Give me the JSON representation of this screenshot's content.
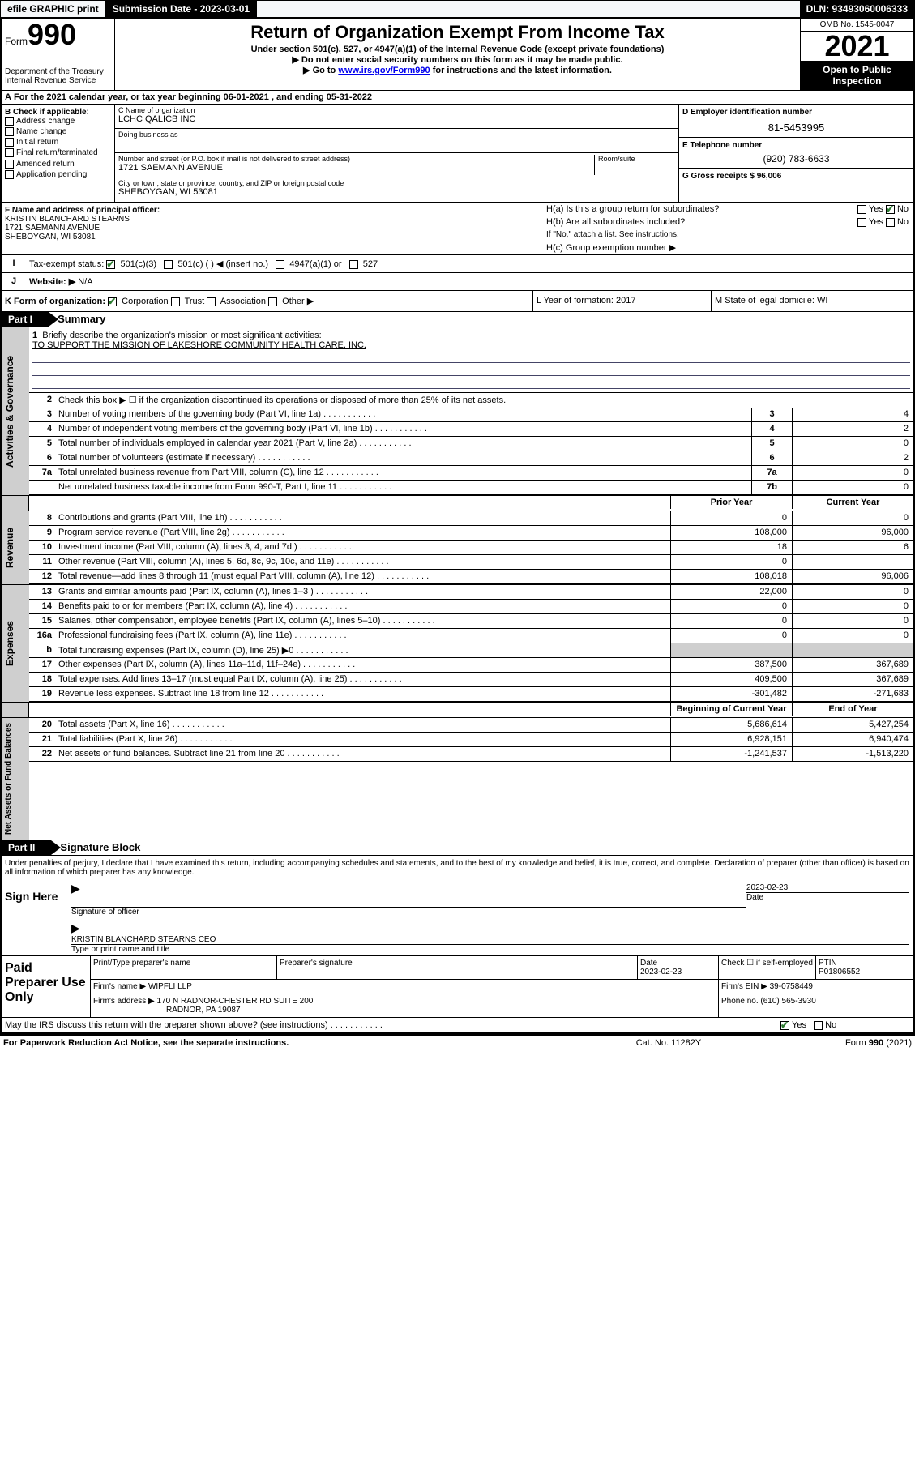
{
  "topbar": {
    "efile": "efile GRAPHIC print",
    "subdate_label": "Submission Date - 2023-03-01",
    "dln": "DLN: 93493060006333"
  },
  "header": {
    "formword": "Form",
    "formnum": "990",
    "dept": "Department of the Treasury",
    "irs": "Internal Revenue Service",
    "title": "Return of Organization Exempt From Income Tax",
    "sub1": "Under section 501(c), 527, or 4947(a)(1) of the Internal Revenue Code (except private foundations)",
    "sub2": "Do not enter social security numbers on this form as it may be made public.",
    "sub3_pre": "Go to ",
    "sub3_link": "www.irs.gov/Form990",
    "sub3_post": " for instructions and the latest information.",
    "omb": "OMB No. 1545-0047",
    "year": "2021",
    "inspect": "Open to Public Inspection"
  },
  "line_a": "For the 2021 calendar year, or tax year beginning 06-01-2021   , and ending 05-31-2022",
  "col_b_label": "B Check if applicable:",
  "col_b_items": [
    "Address change",
    "Name change",
    "Initial return",
    "Final return/terminated",
    "Amended return",
    "Application pending"
  ],
  "col_c": {
    "name_label": "C Name of organization",
    "name": "LCHC QALICB INC",
    "dba_label": "Doing business as",
    "addr_label": "Number and street (or P.O. box if mail is not delivered to street address)",
    "room_label": "Room/suite",
    "addr": "1721 SAEMANN AVENUE",
    "city_label": "City or town, state or province, country, and ZIP or foreign postal code",
    "city": "SHEBOYGAN, WI  53081"
  },
  "col_d": {
    "ein_label": "D Employer identification number",
    "ein": "81-5453995",
    "tel_label": "E Telephone number",
    "tel": "(920) 783-6633",
    "gross_label": "G Gross receipts $ 96,006"
  },
  "col_f": {
    "label": "F  Name and address of principal officer:",
    "name": "KRISTIN BLANCHARD STEARNS",
    "addr1": "1721 SAEMANN AVENUE",
    "addr2": "SHEBOYGAN, WI  53081"
  },
  "col_h": {
    "ha": "H(a)  Is this a group return for subordinates?",
    "ha_yes": "Yes",
    "ha_no": "No",
    "hb": "H(b)  Are all subordinates included?",
    "hb_yes": "Yes",
    "hb_no": "No",
    "hb_note": "If \"No,\" attach a list. See instructions.",
    "hc": "H(c)  Group exemption number ▶"
  },
  "row_i": {
    "label": "I",
    "text": "Tax-exempt status:",
    "opt1": "501(c)(3)",
    "opt2": "501(c) (  ) ◀ (insert no.)",
    "opt3": "4947(a)(1) or",
    "opt4": "527"
  },
  "row_j": {
    "label": "J",
    "text": "Website: ▶",
    "val": "N/A"
  },
  "row_k": {
    "k_text": "K Form of organization:",
    "corp": "Corporation",
    "trust": "Trust",
    "assoc": "Association",
    "other": "Other ▶",
    "l_text": "L Year of formation: 2017",
    "m_text": "M State of legal domicile: WI"
  },
  "part1_label": "Part I",
  "part1_title": "Summary",
  "summary": {
    "line1_label": "1",
    "line1": "Briefly describe the organization's mission or most significant activities:",
    "mission": "TO SUPPORT THE MISSION OF LAKESHORE COMMUNITY HEALTH CARE, INC.",
    "line2_label": "2",
    "line2": "Check this box ▶ ☐  if the organization discontinued its operations or disposed of more than 25% of its net assets.",
    "gov": [
      {
        "n": "3",
        "t": "Number of voting members of the governing body (Part VI, line 1a)",
        "b": "3",
        "v": "4"
      },
      {
        "n": "4",
        "t": "Number of independent voting members of the governing body (Part VI, line 1b)",
        "b": "4",
        "v": "2"
      },
      {
        "n": "5",
        "t": "Total number of individuals employed in calendar year 2021 (Part V, line 2a)",
        "b": "5",
        "v": "0"
      },
      {
        "n": "6",
        "t": "Total number of volunteers (estimate if necessary)",
        "b": "6",
        "v": "2"
      },
      {
        "n": "7a",
        "t": "Total unrelated business revenue from Part VIII, column (C), line 12",
        "b": "7a",
        "v": "0"
      },
      {
        "n": "",
        "t": "Net unrelated business taxable income from Form 990-T, Part I, line 11",
        "b": "7b",
        "v": "0"
      }
    ],
    "prior_label": "Prior Year",
    "current_label": "Current Year",
    "rev": [
      {
        "n": "8",
        "t": "Contributions and grants (Part VIII, line 1h)",
        "p": "0",
        "c": "0"
      },
      {
        "n": "9",
        "t": "Program service revenue (Part VIII, line 2g)",
        "p": "108,000",
        "c": "96,000"
      },
      {
        "n": "10",
        "t": "Investment income (Part VIII, column (A), lines 3, 4, and 7d )",
        "p": "18",
        "c": "6"
      },
      {
        "n": "11",
        "t": "Other revenue (Part VIII, column (A), lines 5, 6d, 8c, 9c, 10c, and 11e)",
        "p": "0",
        "c": ""
      },
      {
        "n": "12",
        "t": "Total revenue—add lines 8 through 11 (must equal Part VIII, column (A), line 12)",
        "p": "108,018",
        "c": "96,006"
      }
    ],
    "exp": [
      {
        "n": "13",
        "t": "Grants and similar amounts paid (Part IX, column (A), lines 1–3 )",
        "p": "22,000",
        "c": "0"
      },
      {
        "n": "14",
        "t": "Benefits paid to or for members (Part IX, column (A), line 4)",
        "p": "0",
        "c": "0"
      },
      {
        "n": "15",
        "t": "Salaries, other compensation, employee benefits (Part IX, column (A), lines 5–10)",
        "p": "0",
        "c": "0"
      },
      {
        "n": "16a",
        "t": "Professional fundraising fees (Part IX, column (A), line 11e)",
        "p": "0",
        "c": "0"
      },
      {
        "n": "b",
        "t": "Total fundraising expenses (Part IX, column (D), line 25) ▶0",
        "p": "__gray__",
        "c": "__gray__"
      },
      {
        "n": "17",
        "t": "Other expenses (Part IX, column (A), lines 11a–11d, 11f–24e)",
        "p": "387,500",
        "c": "367,689"
      },
      {
        "n": "18",
        "t": "Total expenses. Add lines 13–17 (must equal Part IX, column (A), line 25)",
        "p": "409,500",
        "c": "367,689"
      },
      {
        "n": "19",
        "t": "Revenue less expenses. Subtract line 18 from line 12",
        "p": "-301,482",
        "c": "-271,683"
      }
    ],
    "boy_label": "Beginning of Current Year",
    "eoy_label": "End of Year",
    "net": [
      {
        "n": "20",
        "t": "Total assets (Part X, line 16)",
        "p": "5,686,614",
        "c": "5,427,254"
      },
      {
        "n": "21",
        "t": "Total liabilities (Part X, line 26)",
        "p": "6,928,151",
        "c": "6,940,474"
      },
      {
        "n": "22",
        "t": "Net assets or fund balances. Subtract line 21 from line 20",
        "p": "-1,241,537",
        "c": "-1,513,220"
      }
    ]
  },
  "rot_labels": {
    "gov": "Activities & Governance",
    "rev": "Revenue",
    "exp": "Expenses",
    "net": "Net Assets or Fund Balances"
  },
  "part2_label": "Part II",
  "part2_title": "Signature Block",
  "penalties": "Under penalties of perjury, I declare that I have examined this return, including accompanying schedules and statements, and to the best of my knowledge and belief, it is true, correct, and complete. Declaration of preparer (other than officer) is based on all information of which preparer has any knowledge.",
  "sign": {
    "here": "Sign Here",
    "sig_officer": "Signature of officer",
    "sig_date": "2023-02-23",
    "date_lab": "Date",
    "name": "KRISTIN BLANCHARD STEARNS CEO",
    "name_lab": "Type or print name and title"
  },
  "paid": {
    "label": "Paid Preparer Use Only",
    "col1": "Print/Type preparer's name",
    "col2": "Preparer's signature",
    "col3_lab": "Date",
    "col3": "2023-02-23",
    "col4": "Check ☐ if self-employed",
    "col5_lab": "PTIN",
    "col5": "P01806552",
    "firm_lab": "Firm's name   ▶",
    "firm": "WIPFLI LLP",
    "ein_lab": "Firm's EIN ▶",
    "ein": "39-0758449",
    "addr_lab": "Firm's address ▶",
    "addr1": "170 N RADNOR-CHESTER RD SUITE 200",
    "addr2": "RADNOR, PA  19087",
    "phone_lab": "Phone no.",
    "phone": "(610) 565-3930",
    "discuss": "May the IRS discuss this return with the preparer shown above? (see instructions)",
    "discuss_yes": "Yes",
    "discuss_no": "No"
  },
  "footer": {
    "f1": "For Paperwork Reduction Act Notice, see the separate instructions.",
    "f2": "Cat. No. 11282Y",
    "f3": "Form 990 (2021)"
  }
}
